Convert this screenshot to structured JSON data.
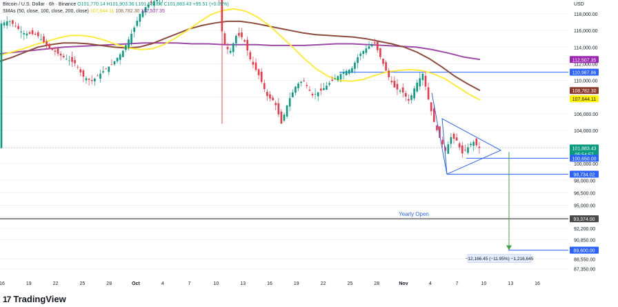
{
  "header": {
    "symbol": "Bitcoin / U.S. Dollar · 6h · Binance",
    "ohlc_text": "O101,770.14 H101,903.36 L101,681.56 C101,883.43 +95.51 (+0.09%)",
    "sma_label": "SMAs (50, close, 100, close, 200, close)",
    "sma_values": [
      "107,644.11",
      "108,782.30",
      "112,507.35"
    ],
    "currency": "USD"
  },
  "branding": {
    "logo_text": "17",
    "name": "TradingView"
  },
  "colors": {
    "up": "#089981",
    "down": "#f23645",
    "sma50": "#ffeb3b",
    "sma100": "#8b4a3c",
    "sma200": "#9c4aa5",
    "trendline": "#2962ff",
    "yearly_open": "#4a4a4a",
    "target": "#43a047"
  },
  "chart_data": {
    "type": "candlestick",
    "title": "Bitcoin / U.S. Dollar · 6h · Binance",
    "ylim": [
      86500,
      119000
    ],
    "y_ticks": [
      "118,000.00",
      "116,000.00",
      "114,000.00",
      "112,000.00",
      "110,000.00",
      "108,000.00",
      "106,000.00",
      "104,000.00",
      "102,000.00",
      "100,000.00",
      "98,000.00",
      "96,500.00",
      "95,000.00",
      "93,600.00",
      "92,200.00",
      "90,850.00",
      "88,550.00",
      "87,350.00"
    ],
    "x_labels": [
      "16",
      "19",
      "22",
      "25",
      "28",
      "Oct",
      "4",
      "7",
      "10",
      "13",
      "16",
      "19",
      "22",
      "25",
      "28",
      "Nov",
      "4",
      "7",
      "10",
      "13",
      "16"
    ],
    "price_labels": [
      {
        "text": "112,507.35",
        "value": 112507.35,
        "color": "#9c27b0"
      },
      {
        "text": "110,987.86",
        "value": 110987.86,
        "color": "#2962ff"
      },
      {
        "text": "108,782.30",
        "value": 108782.3,
        "color": "#8b3a2a"
      },
      {
        "text": "107,644.11",
        "value": 107644.11,
        "color": "#fff000",
        "dark": true
      },
      {
        "text": "101,883.43",
        "value": 101883.43,
        "color": "#089981"
      },
      {
        "text": "05:54:57",
        "value": 101883.43,
        "color": "#089981",
        "sub": true
      },
      {
        "text": "100,650.00",
        "value": 100650,
        "color": "#2962ff"
      },
      {
        "text": "98,734.02",
        "value": 98734.02,
        "color": "#2962ff"
      },
      {
        "text": "93,374.00",
        "value": 93374,
        "color": "#4a4a4a"
      },
      {
        "text": "89,600.00",
        "value": 89600,
        "color": "#2962ff"
      }
    ],
    "annotations": {
      "yearly_open_label": "Yearly Open",
      "yearly_open_value": 93374,
      "measure_text": "−12,166.45 (−11.95%) −1,216,645",
      "target_value": 89600,
      "resistance_value": 110987.86
    },
    "series": [
      {
        "name": "SMA 50",
        "values": [
          113000,
          113400,
          113800,
          114300,
          114700,
          115100,
          115400,
          115400,
          115200,
          114800,
          114300,
          113900,
          113700,
          113800,
          114300,
          115100,
          116000,
          117000,
          117900,
          118400,
          118600,
          118300,
          117600,
          116600,
          115300,
          114000,
          112600,
          111400,
          110500,
          110000,
          109900,
          110100,
          110600,
          111000,
          111200,
          111300,
          111200,
          110800,
          110200,
          109300,
          108400,
          107644
        ]
      },
      {
        "name": "SMA 100",
        "values": [
          112300,
          112800,
          113400,
          114000,
          114300,
          114500,
          114500,
          114400,
          114200,
          114000,
          113900,
          114000,
          114400,
          115000,
          115600,
          116200,
          116600,
          116900,
          117100,
          117100,
          116900,
          116600,
          116300,
          116000,
          115700,
          115500,
          115400,
          115300,
          115200,
          115000,
          114700,
          114400,
          114000,
          113400,
          112600,
          111600,
          110500,
          109600,
          108782
        ]
      },
      {
        "name": "SMA 200",
        "values": [
          113200,
          113400,
          113600,
          113800,
          114000,
          114100,
          114200,
          114300,
          114400,
          114500,
          114500,
          114500,
          114400,
          114400,
          114300,
          114300,
          114300,
          114200,
          114200,
          114200,
          114300,
          114400,
          114400,
          114300,
          114200,
          114100,
          114000,
          113700,
          113300,
          112800,
          112507
        ]
      }
    ]
  }
}
